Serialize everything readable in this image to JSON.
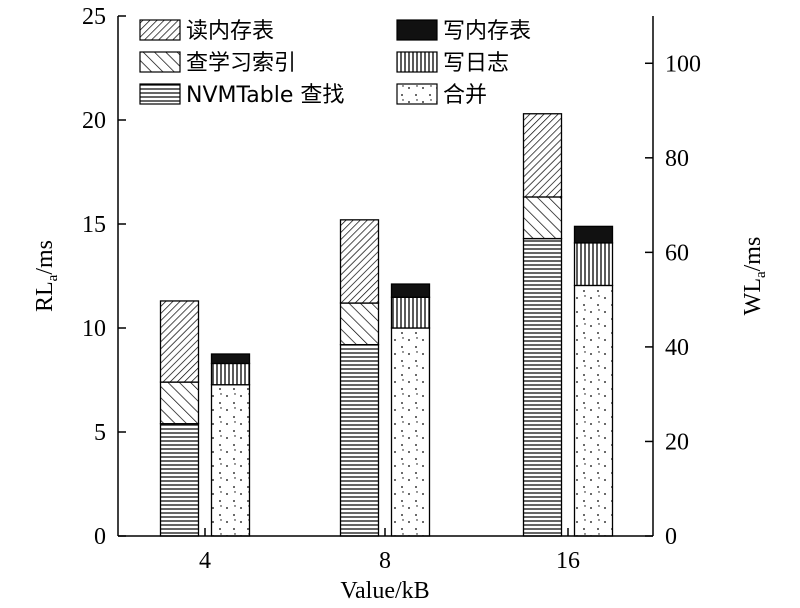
{
  "chart_data": {
    "type": "bar",
    "categories": [
      "4",
      "8",
      "16"
    ],
    "xlabel": "Value/kB",
    "ylabel_left": {
      "main": "RL",
      "sub": "a",
      "unit": "/ms"
    },
    "ylabel_right": {
      "main": "WL",
      "sub": "a",
      "unit": "/ms"
    },
    "ylim_left": [
      0,
      25
    ],
    "ylim_right": [
      0,
      110
    ],
    "yticks_left": [
      0,
      5,
      10,
      15,
      20,
      25
    ],
    "yticks_right": [
      0,
      20,
      40,
      60,
      80,
      100
    ],
    "read_series": [
      {
        "name": "NVMTable 查找",
        "pattern": "hlines",
        "values": [
          5.4,
          9.2,
          14.3
        ]
      },
      {
        "name": "查学习索引",
        "pattern": "diag-sparse",
        "values": [
          2.0,
          2.0,
          2.0
        ]
      },
      {
        "name": "读内存表",
        "pattern": "diag-dense",
        "values": [
          3.9,
          4.0,
          4.0
        ]
      }
    ],
    "write_series": [
      {
        "name": "合并",
        "pattern": "dots",
        "values": [
          32,
          44,
          53
        ]
      },
      {
        "name": "写日志",
        "pattern": "vlines",
        "values": [
          4.5,
          6.5,
          9
        ]
      },
      {
        "name": "写内存表",
        "pattern": "solid",
        "values": [
          2,
          2.8,
          3.5
        ]
      }
    ],
    "legend": {
      "placement": "top-left",
      "left_column": [
        "读内存表",
        "查学习索引",
        "NVMTable 查找"
      ],
      "right_column": [
        "写内存表",
        "写日志",
        "合并"
      ]
    },
    "grid": false
  }
}
